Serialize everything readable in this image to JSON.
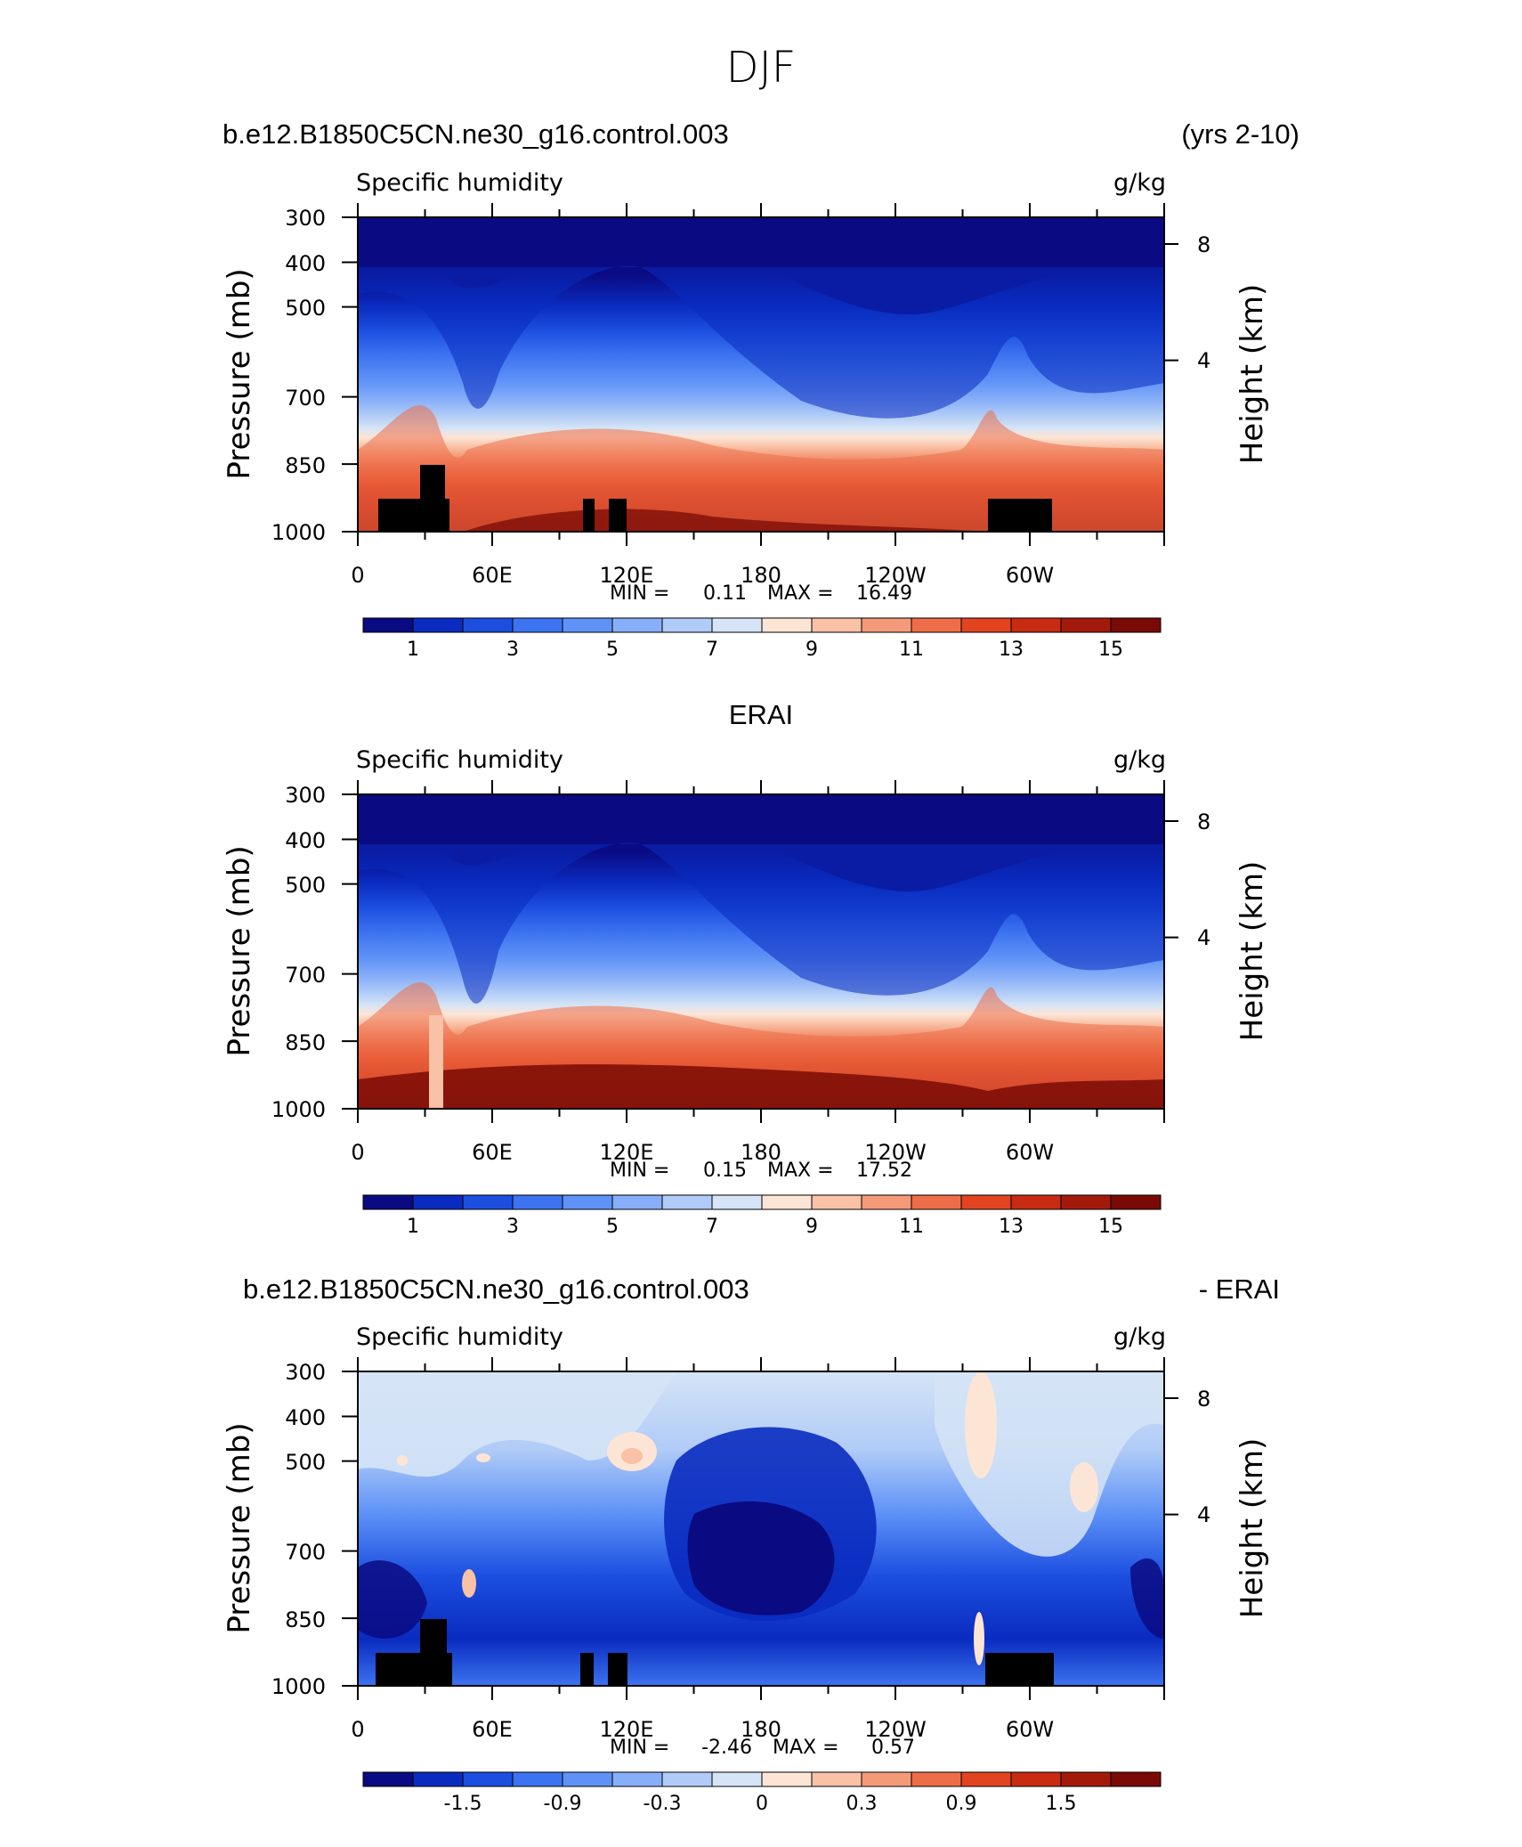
{
  "figure": {
    "title": "DJF",
    "run_name": "b.e12.B1850C5CN.ne30_g16.control.003",
    "years": "(yrs 2-10)",
    "erai_title": "ERAI",
    "diff_title_left": "b.e12.B1850C5CN.ne30_g16.control.003",
    "diff_title_right": "- ERAI"
  },
  "panels": [
    {
      "left_label": "Specific humidity",
      "right_label": "g/kg",
      "ylabel": "Pressure (mb)",
      "ylabel_right": "Height (km)",
      "yticks": [
        "300",
        "400",
        "500",
        "700",
        "850",
        "1000"
      ],
      "yticks_right": [
        "8",
        "4"
      ],
      "xticks": [
        "0",
        "60E",
        "120E",
        "180",
        "120W",
        "60W"
      ],
      "min_label": "MIN =",
      "min_value": "0.11",
      "max_label": "MAX =",
      "max_value": "16.49",
      "colorbar_labels": [
        "1",
        "3",
        "5",
        "7",
        "9",
        "11",
        "13",
        "15"
      ]
    },
    {
      "left_label": "Specific humidity",
      "right_label": "g/kg",
      "ylabel": "Pressure (mb)",
      "ylabel_right": "Height (km)",
      "yticks": [
        "300",
        "400",
        "500",
        "700",
        "850",
        "1000"
      ],
      "yticks_right": [
        "8",
        "4"
      ],
      "xticks": [
        "0",
        "60E",
        "120E",
        "180",
        "120W",
        "60W"
      ],
      "min_label": "MIN =",
      "min_value": "0.15",
      "max_label": "MAX =",
      "max_value": "17.52",
      "colorbar_labels": [
        "1",
        "3",
        "5",
        "7",
        "9",
        "11",
        "13",
        "15"
      ]
    },
    {
      "left_label": "Specific humidity",
      "right_label": "g/kg",
      "ylabel": "Pressure (mb)",
      "ylabel_right": "Height (km)",
      "yticks": [
        "300",
        "400",
        "500",
        "700",
        "850",
        "1000"
      ],
      "yticks_right": [
        "8",
        "4"
      ],
      "xticks": [
        "0",
        "60E",
        "120E",
        "180",
        "120W",
        "60W"
      ],
      "min_label": "MIN =",
      "min_value": "-2.46",
      "max_label": "MAX =",
      "max_value": "0.57",
      "colorbar_labels": [
        "-1.5",
        "-0.9",
        "-0.3",
        "0",
        "0.3",
        "0.9",
        "1.5"
      ]
    }
  ],
  "colors": {
    "palette": [
      "#0a0a82",
      "#0a2bbf",
      "#1c4fe0",
      "#3c73f0",
      "#5e92f7",
      "#87aef8",
      "#b0cbf7",
      "#d5e4f6",
      "#fde5d6",
      "#f9c1a6",
      "#f49a78",
      "#ed6d48",
      "#e1441f",
      "#c82a12",
      "#a41a0a",
      "#7a0a05"
    ]
  },
  "chart_data": [
    {
      "type": "heatmap",
      "title": "b.e12.B1850C5CN.ne30_g16.control.003",
      "subtitle": "(yrs 2-10)",
      "xlabel": "",
      "ylabel": "Pressure (mb)",
      "ylabel_right": "Height (km)",
      "units": "g/kg",
      "variable": "Specific humidity",
      "x_range_deg_east": [
        0,
        360
      ],
      "y_range_mb": [
        1000,
        300
      ],
      "y_scale": "log",
      "min": 0.11,
      "max": 16.49,
      "contour_levels": [
        1,
        2,
        3,
        4,
        5,
        6,
        7,
        8,
        9,
        10,
        11,
        12,
        13,
        14,
        15
      ],
      "profile_lon": [
        0,
        30,
        42,
        60,
        90,
        120,
        150,
        180,
        210,
        240,
        270,
        282,
        300,
        330,
        360
      ],
      "profile_value_at_850mb": [
        12,
        9,
        13,
        12,
        11,
        11.5,
        11,
        12,
        12,
        12.5,
        10,
        8.5,
        11,
        12,
        12
      ],
      "terrain_masked": true
    },
    {
      "type": "heatmap",
      "title": "ERAI",
      "ylabel": "Pressure (mb)",
      "ylabel_right": "Height (km)",
      "units": "g/kg",
      "variable": "Specific humidity",
      "x_range_deg_east": [
        0,
        360
      ],
      "y_range_mb": [
        1000,
        300
      ],
      "y_scale": "log",
      "min": 0.15,
      "max": 17.52,
      "contour_levels": [
        1,
        2,
        3,
        4,
        5,
        6,
        7,
        8,
        9,
        10,
        11,
        12,
        13,
        14,
        15
      ],
      "terrain_masked": false
    },
    {
      "type": "heatmap",
      "title": "b.e12.B1850C5CN.ne30_g16.control.003 - ERAI",
      "ylabel": "Pressure (mb)",
      "ylabel_right": "Height (km)",
      "units": "g/kg",
      "variable": "Specific humidity",
      "x_range_deg_east": [
        0,
        360
      ],
      "y_range_mb": [
        1000,
        300
      ],
      "y_scale": "log",
      "min": -2.46,
      "max": 0.57,
      "contour_levels": [
        -1.5,
        -1.2,
        -0.9,
        -0.6,
        -0.3,
        0,
        0.3,
        0.6,
        0.9,
        1.2,
        1.5
      ],
      "colorbar_ticks": [
        -1.5,
        -0.9,
        -0.3,
        0,
        0.3,
        0.9,
        1.5
      ],
      "terrain_masked": true
    }
  ]
}
